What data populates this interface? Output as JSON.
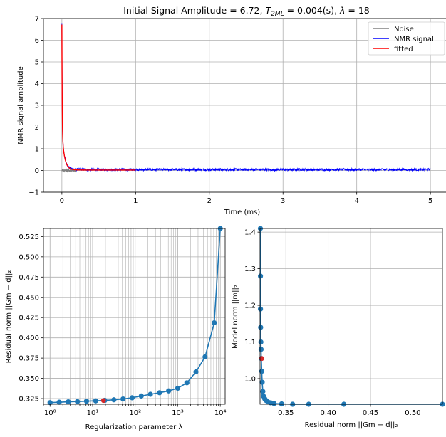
{
  "chart_data": [
    {
      "type": "line",
      "title": "Initial Signal Amplitude =  6.72, T₂ML = 0.004(s), λ =  18",
      "title_parts": {
        "a": "Initial Signal Amplitude =  6.72, ",
        "t": "T",
        "sub": "2ML",
        "b": " = 0.004(s), ",
        "lam": "λ",
        "c": " =  18"
      },
      "xlabel": "Time (ms)",
      "ylabel": "NMR signal amplitude",
      "xlim": [
        -0.25,
        5.25
      ],
      "ylim": [
        -1,
        7
      ],
      "xticks": [
        "0",
        "1",
        "2",
        "3",
        "4",
        "5"
      ],
      "yticks": [
        "−1",
        "0",
        "1",
        "2",
        "3",
        "4",
        "5",
        "6",
        "7"
      ],
      "grid": true,
      "legend_position": "top-right",
      "series": [
        {
          "name": "Noise",
          "color": "#808080",
          "x_range": [
            0,
            0.2
          ],
          "level": 0.0,
          "noise": 0.02
        },
        {
          "name": "NMR signal",
          "color": "#0000ff",
          "x_range": [
            0,
            5.0
          ],
          "peak": 6.72,
          "baseline": 0.04,
          "noise": 0.05
        },
        {
          "name": "fitted",
          "color": "#ff0000",
          "x_range": [
            0,
            1.0
          ],
          "peak": 6.72,
          "baseline": 0.02
        }
      ]
    },
    {
      "type": "line",
      "title": "",
      "xlabel": "Regularization parameter λ",
      "ylabel": "Residual norm ||Gm − d||₂",
      "xscale": "log",
      "xlim": [
        0.7,
        13000
      ],
      "ylim": [
        0.318,
        0.535
      ],
      "xticks": [
        "10⁰",
        "10¹",
        "10²",
        "10³",
        "10⁴"
      ],
      "yticks": [
        "0.325",
        "0.350",
        "0.375",
        "0.400",
        "0.425",
        "0.450",
        "0.475",
        "0.500",
        "0.525"
      ],
      "grid": true,
      "series": [
        {
          "name": "",
          "color": "#1f77b4",
          "x": [
            1.0,
            1.64,
            2.68,
            4.39,
            7.2,
            11.8,
            19.3,
            31.6,
            51.8,
            84.8,
            139,
            228,
            373,
            611,
            1000,
            1640,
            2680,
            4390,
            7200,
            10000
          ],
          "y": [
            0.32,
            0.3205,
            0.321,
            0.3213,
            0.3218,
            0.3222,
            0.3228,
            0.3235,
            0.3245,
            0.326,
            0.3282,
            0.3303,
            0.3322,
            0.3345,
            0.3378,
            0.3445,
            0.358,
            0.3765,
            0.4185,
            0.535
          ]
        }
      ],
      "selected_point": {
        "x": 18,
        "y": 0.3226,
        "color": "#d62728"
      }
    },
    {
      "type": "line",
      "title": "",
      "xlabel": "Residual norm ||Gm − d||₂",
      "ylabel": "Model norm ||m||₂",
      "xlim": [
        0.3195,
        0.535
      ],
      "ylim": [
        0.93,
        1.41
      ],
      "xticks": [
        "0.35",
        "0.40",
        "0.45",
        "0.50"
      ],
      "yticks": [
        "1.0",
        "1.1",
        "1.2",
        "1.3",
        "1.4"
      ],
      "grid": true,
      "series": [
        {
          "name": "",
          "color": "#1f77b4",
          "x": [
            0.3199,
            0.32,
            0.32,
            0.3202,
            0.3205,
            0.3207,
            0.321,
            0.3215,
            0.322,
            0.3228,
            0.3235,
            0.325,
            0.3268,
            0.329,
            0.332,
            0.336,
            0.345,
            0.358,
            0.377,
            0.4185,
            0.535
          ],
          "y": [
            1.41,
            1.28,
            1.19,
            1.14,
            1.1,
            1.08,
            1.055,
            1.02,
            0.99,
            0.965,
            0.952,
            0.945,
            0.94,
            0.936,
            0.934,
            0.932,
            0.931,
            0.93,
            0.93,
            0.93,
            0.93
          ]
        }
      ],
      "selected_point": {
        "x": 0.3215,
        "y": 1.055,
        "color": "#d62728"
      }
    }
  ]
}
